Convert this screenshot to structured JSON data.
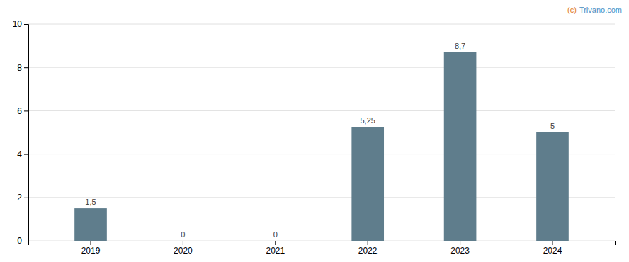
{
  "chart_data": {
    "type": "bar",
    "categories": [
      "2019",
      "2020",
      "2021",
      "2022",
      "2023",
      "2024"
    ],
    "values": [
      1.5,
      0,
      0,
      5.25,
      8.7,
      5
    ],
    "value_labels": [
      "1,5",
      "0",
      "0",
      "5,25",
      "8,7",
      "5"
    ],
    "data_labels": true,
    "color": "#5f7d8c",
    "ylim": [
      0,
      10
    ],
    "yticks": [
      0,
      2,
      4,
      6,
      8,
      10
    ],
    "grid": true,
    "annotations": [
      {
        "text": "(c)",
        "color": "#e07820"
      },
      {
        "text": "Trivano.com",
        "color": "#4a90c4"
      }
    ]
  }
}
